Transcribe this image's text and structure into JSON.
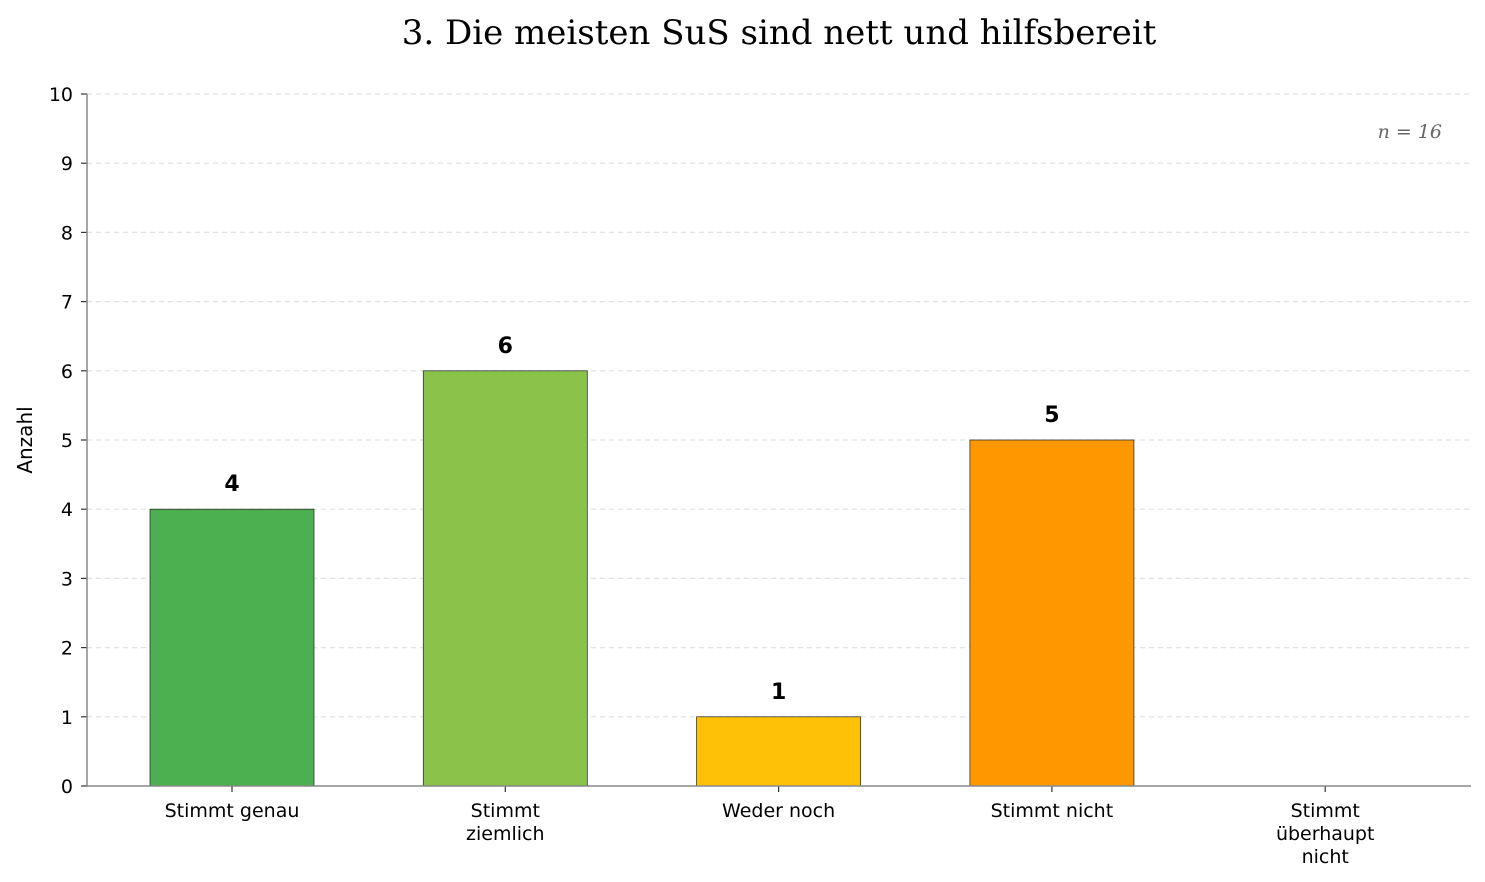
{
  "chart_data": {
    "type": "bar",
    "title": "3. Die meisten SuS sind nett und hilfsbereit",
    "xlabel": "",
    "ylabel": "Anzahl",
    "categories": [
      "Stimmt genau",
      "Stimmt\nziemlich",
      "Weder noch",
      "Stimmt nicht",
      "Stimmt\nüberhaupt\nnicht"
    ],
    "values": [
      4,
      6,
      1,
      5,
      0
    ],
    "colors": [
      "#4CAF50",
      "#8BC34A",
      "#FFC107",
      "#FF9800",
      "#F44336"
    ],
    "ylim": [
      0,
      10
    ],
    "yticks": [
      0,
      1,
      2,
      3,
      4,
      5,
      6,
      7,
      8,
      9,
      10
    ],
    "grid": "horizontal dashed",
    "annotation": "n = 16"
  }
}
